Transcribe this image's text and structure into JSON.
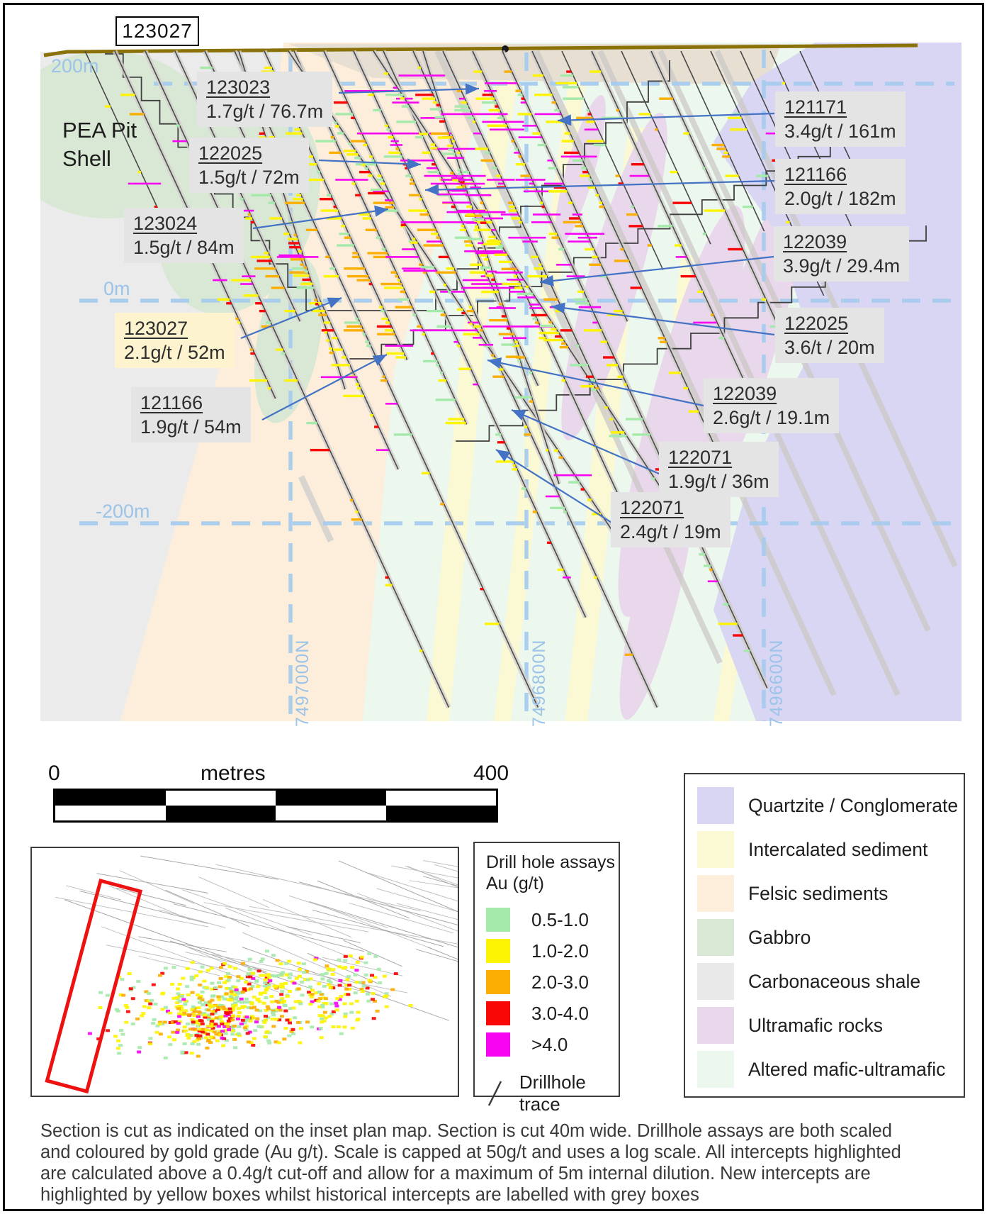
{
  "colors": {
    "accent_arrow": "#4472c4",
    "gridline": "#a6cbee",
    "grid_label": "#9cc3e8",
    "topo_line": "#8a7208",
    "pit_line": "#3f3f3f",
    "drill_trace": "#4a4a4a",
    "callout_grey_bg": "#e4e4e4",
    "callout_new_bg": "#fdf3cf",
    "section_base": "#ebebeb",
    "surface_band": "#e6dfd2",
    "section_location_outline": "#ee1111"
  },
  "header": {
    "title_box": "123027"
  },
  "section": {
    "pit_label": "PEA Pit\nShell",
    "depth_labels": [
      "200m",
      "0m",
      "-200m"
    ],
    "northing_labels": [
      "7497000N",
      "7496800N",
      "7496600N"
    ],
    "callouts": [
      {
        "hole": "123023",
        "intercept": "1.7g/t / 76.7m",
        "style": "historical"
      },
      {
        "hole": "122025",
        "intercept": "1.5g/t / 72m",
        "style": "historical"
      },
      {
        "hole": "123024",
        "intercept": "1.5g/t / 84m",
        "style": "historical"
      },
      {
        "hole": "121171",
        "intercept": "3.4g/t / 161m",
        "style": "historical"
      },
      {
        "hole": "121166",
        "intercept": "2.0g/t / 182m",
        "style": "historical"
      },
      {
        "hole": "122039",
        "intercept": "3.9g/t / 29.4m",
        "style": "historical"
      },
      {
        "hole": "122025",
        "intercept": "3.6/t / 20m",
        "style": "historical"
      },
      {
        "hole": "122039",
        "intercept": "2.6g/t / 19.1m",
        "style": "historical"
      },
      {
        "hole": "122071",
        "intercept": "1.9g/t / 36m",
        "style": "historical"
      },
      {
        "hole": "122071",
        "intercept": "2.4g/t / 19m",
        "style": "historical"
      },
      {
        "hole": "123027",
        "intercept": "2.1g/t / 52m",
        "style": "new"
      },
      {
        "hole": "121166",
        "intercept": "1.9g/t / 54m",
        "style": "historical"
      }
    ]
  },
  "scale_bar": {
    "start": "0",
    "unit": "metres",
    "end": "400"
  },
  "assay_legend": {
    "title": "Drill hole assays",
    "subtitle": "Au (g/t)",
    "classes": [
      {
        "label": "0.5-1.0",
        "color": "#a5e9ab"
      },
      {
        "label": "1.0-2.0",
        "color": "#fdf403"
      },
      {
        "label": "2.0-3.0",
        "color": "#fcaf03"
      },
      {
        "label": "3.0-4.0",
        "color": "#f90606"
      },
      {
        "label": ">4.0",
        "color": "#f705f2"
      }
    ],
    "trace_label": "Drillhole trace"
  },
  "geology_legend": {
    "units": [
      {
        "label": "Quartzite / Conglomerate",
        "color": "#d9d6f4"
      },
      {
        "label": "Intercalated sediment",
        "color": "#fbf8d4"
      },
      {
        "label": "Felsic sediments",
        "color": "#fdeedb"
      },
      {
        "label": "Gabbro",
        "color": "#d9e7d5"
      },
      {
        "label": "Carbonaceous shale",
        "color": "#e9e9e9"
      },
      {
        "label": "Ultramafic rocks",
        "color": "#e9d7eb"
      },
      {
        "label": "Altered mafic-ultramafic",
        "color": "#ecf8ee"
      }
    ]
  },
  "caption": {
    "lines": [
      "Section is cut as indicated on the inset plan map. Section is cut 40m wide. Drillhole assays are both scaled",
      "and coloured by gold grade (Au g/t). Scale is capped at 50g/t and uses a log scale. All intercepts highlighted",
      "are calculated above a 0.4g/t cut-off and allow for a maximum of 5m internal dilution. New intercepts are",
      "highlighted by yellow boxes whilst historical intercepts are labelled with grey boxes"
    ]
  }
}
